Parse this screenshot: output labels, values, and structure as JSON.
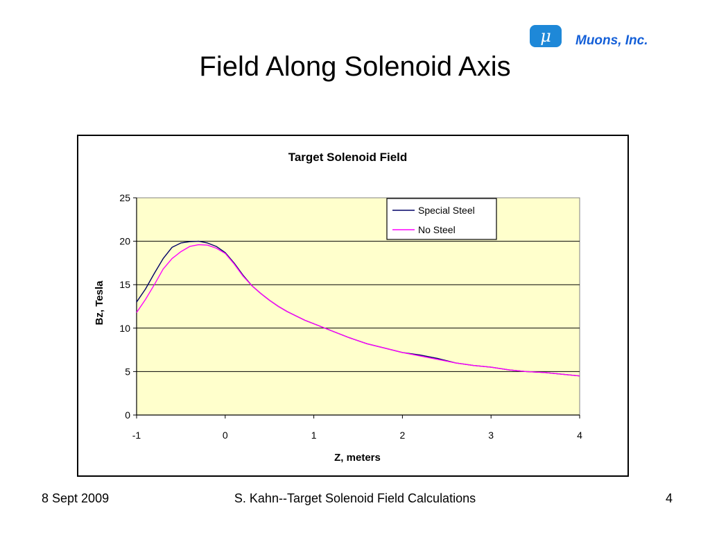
{
  "slide": {
    "title": "Field Along Solenoid Axis",
    "logo_text": "Muons, Inc.",
    "logo_symbol": "μ",
    "footer_date": "8 Sept 2009",
    "footer_center": "S. Kahn--Target Solenoid Field Calculations",
    "footer_page": "4"
  },
  "colors": {
    "plot_background": "#ffffcc",
    "special_steel": "#000066",
    "no_steel": "#ff00ff",
    "logo_blue": "#1560d8"
  },
  "chart_data": {
    "type": "line",
    "title": "Target Solenoid Field",
    "xlabel": "Z, meters",
    "ylabel": "Bz, Tesla",
    "xlim": [
      -1,
      4
    ],
    "ylim": [
      0,
      25
    ],
    "xticks": [
      "-1",
      "0",
      "1",
      "2",
      "3",
      "4"
    ],
    "yticks": [
      "0",
      "5",
      "10",
      "15",
      "20",
      "25"
    ],
    "grid": "horizontal",
    "legend_position": "top-right",
    "x": [
      -1.0,
      -0.9,
      -0.8,
      -0.7,
      -0.6,
      -0.5,
      -0.4,
      -0.3,
      -0.2,
      -0.1,
      0.0,
      0.1,
      0.2,
      0.3,
      0.4,
      0.5,
      0.6,
      0.7,
      0.8,
      0.9,
      1.0,
      1.2,
      1.4,
      1.6,
      1.8,
      2.0,
      2.2,
      2.4,
      2.6,
      2.8,
      3.0,
      3.2,
      3.4,
      3.6,
      3.8,
      4.0
    ],
    "series": [
      {
        "name": "Special Steel",
        "values": [
          13.0,
          14.5,
          16.3,
          18.0,
          19.3,
          19.8,
          19.95,
          20.0,
          19.8,
          19.4,
          18.7,
          17.5,
          16.1,
          14.9,
          14.0,
          13.2,
          12.5,
          11.9,
          11.4,
          10.9,
          10.5,
          9.7,
          8.9,
          8.2,
          7.7,
          7.2,
          6.9,
          6.5,
          6.0,
          5.7,
          5.5,
          5.2,
          5.0,
          4.9,
          4.7,
          4.5
        ]
      },
      {
        "name": "No Steel",
        "values": [
          11.8,
          13.3,
          15.0,
          16.8,
          18.0,
          18.8,
          19.4,
          19.6,
          19.55,
          19.2,
          18.6,
          17.4,
          16.0,
          14.9,
          14.0,
          13.2,
          12.5,
          11.9,
          11.4,
          10.9,
          10.5,
          9.7,
          8.9,
          8.2,
          7.7,
          7.2,
          6.8,
          6.4,
          6.0,
          5.7,
          5.5,
          5.2,
          5.0,
          4.9,
          4.7,
          4.5
        ]
      }
    ]
  }
}
